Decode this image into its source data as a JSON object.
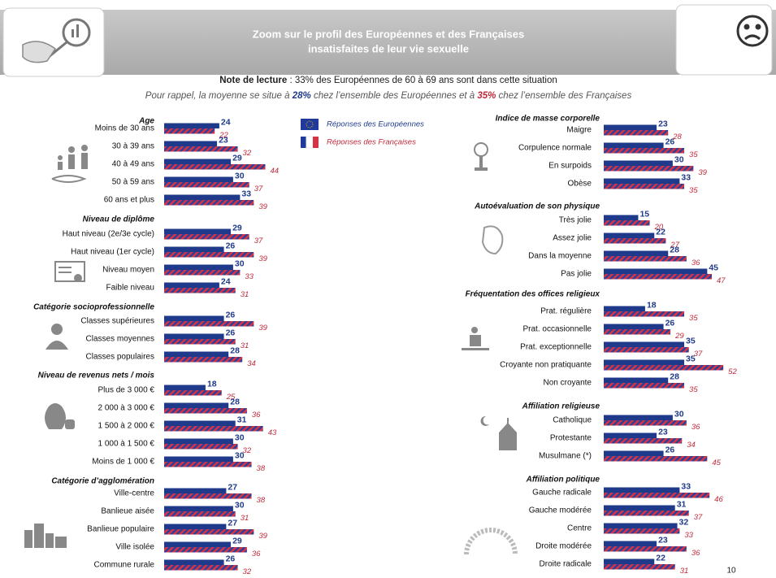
{
  "header": {
    "title_lines": [
      "Zoom sur le profil des Européennes et des Françaises",
      "insatisfaites de leur vie sexuelle"
    ],
    "note_label": "Note de lecture",
    "note_text": ": 33% des Européennes de 60 à 69 ans sont dans cette situation",
    "reminder": [
      "Pour rappel, la moyenne se situe à ",
      "28%",
      " chez l’ensemble des Européennes et à ",
      "35%",
      " chez l’ensemble des Françaises"
    ]
  },
  "page_number": "10",
  "chart_data": [
    {
      "type": "bar",
      "title": "Age",
      "categories": [
        "Moins de 30 ans",
        "30 à 39 ans",
        "40 à 49 ans",
        "50 à 59 ans",
        "60 ans et plus"
      ],
      "series": [
        {
          "name": "Réponses des Européennes",
          "color": "#1f3a8a",
          "values": [
            24,
            23,
            29,
            30,
            33
          ]
        },
        {
          "name": "Réponses des Françaises",
          "color": "#c0283a",
          "values": [
            22,
            32,
            44,
            37,
            39
          ]
        }
      ]
    },
    {
      "type": "bar",
      "title": "Niveau de diplôme",
      "categories": [
        "Haut niveau (2e/3e cycle)",
        "Haut niveau (1er cycle)",
        "Niveau moyen",
        "Faible niveau"
      ],
      "series": [
        {
          "name": "Réponses des Européennes",
          "color": "#1f3a8a",
          "values": [
            29,
            26,
            30,
            24
          ]
        },
        {
          "name": "Réponses des Françaises",
          "color": "#c0283a",
          "values": [
            37,
            39,
            33,
            31
          ]
        }
      ]
    },
    {
      "type": "bar",
      "title": "Catégorie socioprofessionnelle",
      "categories": [
        "Classes supérieures",
        "Classes moyennes",
        "Classes populaires"
      ],
      "series": [
        {
          "name": "Réponses des Européennes",
          "color": "#1f3a8a",
          "values": [
            26,
            26,
            28
          ]
        },
        {
          "name": "Réponses des Françaises",
          "color": "#c0283a",
          "values": [
            39,
            31,
            34
          ]
        }
      ]
    },
    {
      "type": "bar",
      "title": "Niveau de revenus nets / mois",
      "categories": [
        "Plus de 3 000 €",
        "2 000 à 3 000 €",
        "1 500 à 2 000 €",
        "1 000 à 1 500 €",
        "Moins de 1 000 €"
      ],
      "series": [
        {
          "name": "Réponses des Européennes",
          "color": "#1f3a8a",
          "values": [
            18,
            28,
            31,
            30,
            30
          ]
        },
        {
          "name": "Réponses des Françaises",
          "color": "#c0283a",
          "values": [
            25,
            36,
            43,
            32,
            38
          ]
        }
      ]
    },
    {
      "type": "bar",
      "title": "Catégorie d’agglomération",
      "categories": [
        "Ville-centre",
        "Banlieue aisée",
        "Banlieue populaire",
        "Ville isolée",
        "Commune rurale"
      ],
      "series": [
        {
          "name": "Réponses des Européennes",
          "color": "#1f3a8a",
          "values": [
            27,
            30,
            27,
            29,
            26
          ]
        },
        {
          "name": "Réponses des Françaises",
          "color": "#c0283a",
          "values": [
            38,
            31,
            39,
            36,
            32
          ]
        }
      ]
    },
    {
      "type": "bar",
      "title": "Indice de masse corporelle",
      "categories": [
        "Maigre",
        "Corpulence normale",
        "En surpoids",
        "Obèse"
      ],
      "series": [
        {
          "name": "Réponses des Européennes",
          "color": "#1f3a8a",
          "values": [
            23,
            26,
            30,
            33
          ]
        },
        {
          "name": "Réponses des Françaises",
          "color": "#c0283a",
          "values": [
            28,
            35,
            39,
            35
          ]
        }
      ]
    },
    {
      "type": "bar",
      "title": "Autoévaluation de son physique",
      "categories": [
        "Très jolie",
        "Assez jolie",
        "Dans la moyenne",
        "Pas jolie"
      ],
      "series": [
        {
          "name": "Réponses des Européennes",
          "color": "#1f3a8a",
          "values": [
            15,
            22,
            28,
            45
          ]
        },
        {
          "name": "Réponses des Françaises",
          "color": "#c0283a",
          "values": [
            20,
            27,
            36,
            47
          ]
        }
      ]
    },
    {
      "type": "bar",
      "title": "Fréquentation des offices religieux",
      "categories": [
        "Prat. régulière",
        "Prat. occasionnelle",
        "Prat. exceptionnelle",
        "Croyante non pratiquante",
        "Non croyante"
      ],
      "series": [
        {
          "name": "Réponses des Européennes",
          "color": "#1f3a8a",
          "values": [
            18,
            26,
            35,
            35,
            28
          ]
        },
        {
          "name": "Réponses des Françaises",
          "color": "#c0283a",
          "values": [
            35,
            29,
            37,
            52,
            35
          ]
        }
      ]
    },
    {
      "type": "bar",
      "title": "Affiliation religieuse",
      "categories": [
        "Catholique",
        "Protestante",
        "Musulmane (*)"
      ],
      "series": [
        {
          "name": "Réponses des Européennes",
          "color": "#1f3a8a",
          "values": [
            30,
            23,
            26
          ]
        },
        {
          "name": "Réponses des Françaises",
          "color": "#c0283a",
          "values": [
            36,
            34,
            45
          ]
        }
      ]
    },
    {
      "type": "bar",
      "title": "Affiliation politique",
      "categories": [
        "Gauche radicale",
        "Gauche modérée",
        "Centre",
        "Droite modérée",
        "Droite radicale"
      ],
      "series": [
        {
          "name": "Réponses des Européennes",
          "color": "#1f3a8a",
          "values": [
            33,
            31,
            32,
            23,
            22
          ]
        },
        {
          "name": "Réponses des Françaises",
          "color": "#c0283a",
          "values": [
            46,
            37,
            33,
            36,
            31
          ]
        }
      ]
    }
  ]
}
